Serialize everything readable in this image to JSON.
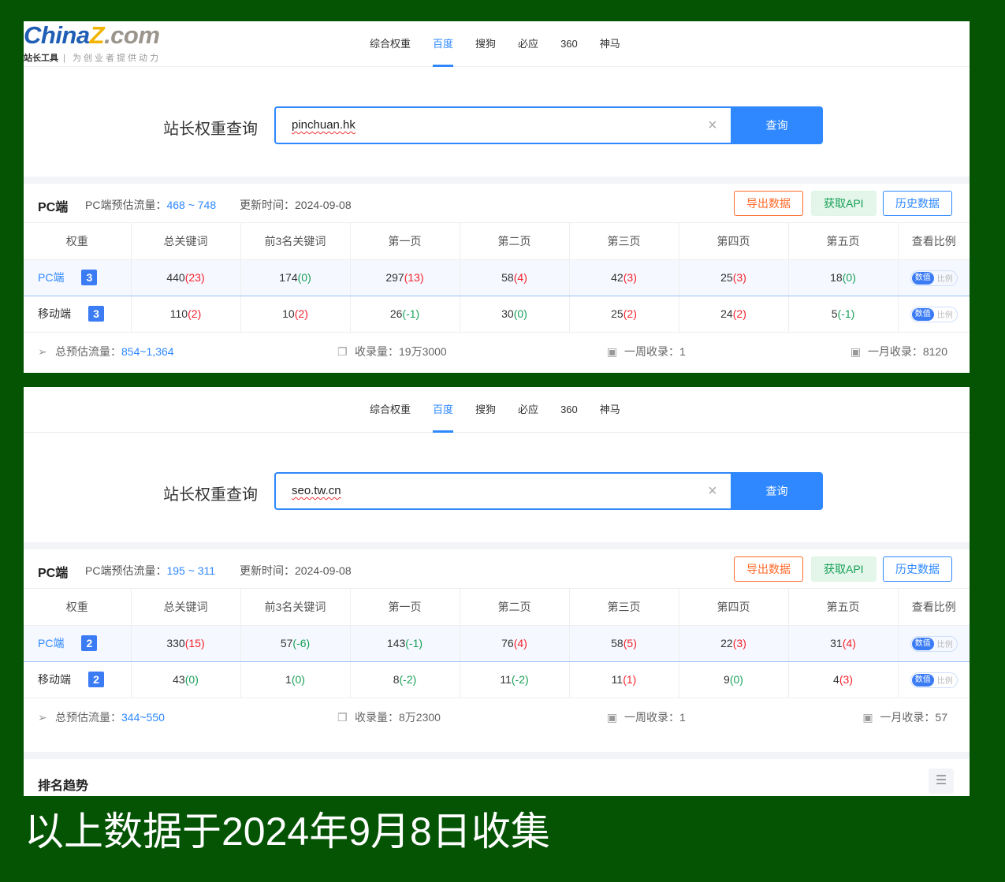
{
  "logo": {
    "brand_a": "China",
    "brand_z": "Z",
    "brand_b": ".com",
    "slogan_bold": "站长工具",
    "slogan": "为创业者提供动力"
  },
  "nav": [
    "综合权重",
    "百度",
    "搜狗",
    "必应",
    "360",
    "神马"
  ],
  "active_tab": 1,
  "search_label": "站长权重查询",
  "query_button": "查询",
  "clear_icon": "×",
  "buttons": {
    "export": "导出数据",
    "api": "获取API",
    "history": "历史数据"
  },
  "columns": [
    "权重",
    "总关键词",
    "前3名关键词",
    "第一页",
    "第二页",
    "第三页",
    "第四页",
    "第五页",
    "查看比例"
  ],
  "toggle": {
    "on": "数值",
    "off": "比例"
  },
  "labels": {
    "pc": "PC端",
    "pc_flow": "PC端预估流量：",
    "update": "更新时间：",
    "total_flow": "总预估流量：",
    "indexed": "收录量：",
    "week": "一周收录：",
    "month": "一月收录："
  },
  "colors": {
    "accent": "#2f88ff",
    "up": "#f5222d",
    "down": "#18a058",
    "background": "#045404"
  },
  "panels": [
    {
      "domain": "pinchuan.hk",
      "pc_flow": "468 ~ 748",
      "update": "2024-09-08",
      "rows": [
        {
          "name": "PC端",
          "weight": "3",
          "cells": [
            [
              "440",
              "23"
            ],
            [
              "174",
              "0"
            ],
            [
              "297",
              "13"
            ],
            [
              "58",
              "4"
            ],
            [
              "42",
              "3"
            ],
            [
              "25",
              "3"
            ],
            [
              "18",
              "0"
            ]
          ]
        },
        {
          "name": "移动端",
          "weight": "3",
          "cells": [
            [
              "110",
              "2"
            ],
            [
              "10",
              "2"
            ],
            [
              "26",
              "-1"
            ],
            [
              "30",
              "0"
            ],
            [
              "25",
              "2"
            ],
            [
              "24",
              "2"
            ],
            [
              "5",
              "-1"
            ]
          ]
        }
      ],
      "total_flow": "854~1,364",
      "indexed": "19万3000",
      "week": "1",
      "month": "8120"
    },
    {
      "domain": "seo.tw.cn",
      "pc_flow": "195 ~ 311",
      "update": "2024-09-08",
      "rows": [
        {
          "name": "PC端",
          "weight": "2",
          "cells": [
            [
              "330",
              "15"
            ],
            [
              "57",
              "-6"
            ],
            [
              "143",
              "-1"
            ],
            [
              "76",
              "4"
            ],
            [
              "58",
              "5"
            ],
            [
              "22",
              "3"
            ],
            [
              "31",
              "4"
            ]
          ]
        },
        {
          "name": "移动端",
          "weight": "2",
          "cells": [
            [
              "43",
              "0"
            ],
            [
              "1",
              "0"
            ],
            [
              "8",
              "-2"
            ],
            [
              "11",
              "-2"
            ],
            [
              "11",
              "1"
            ],
            [
              "9",
              "0"
            ],
            [
              "4",
              "3"
            ]
          ]
        }
      ],
      "total_flow": "344~550",
      "indexed": "8万2300",
      "week": "1",
      "month": "57"
    }
  ],
  "trend_title": "排名趋势",
  "caption": "以上数据于2024年9月8日收集"
}
